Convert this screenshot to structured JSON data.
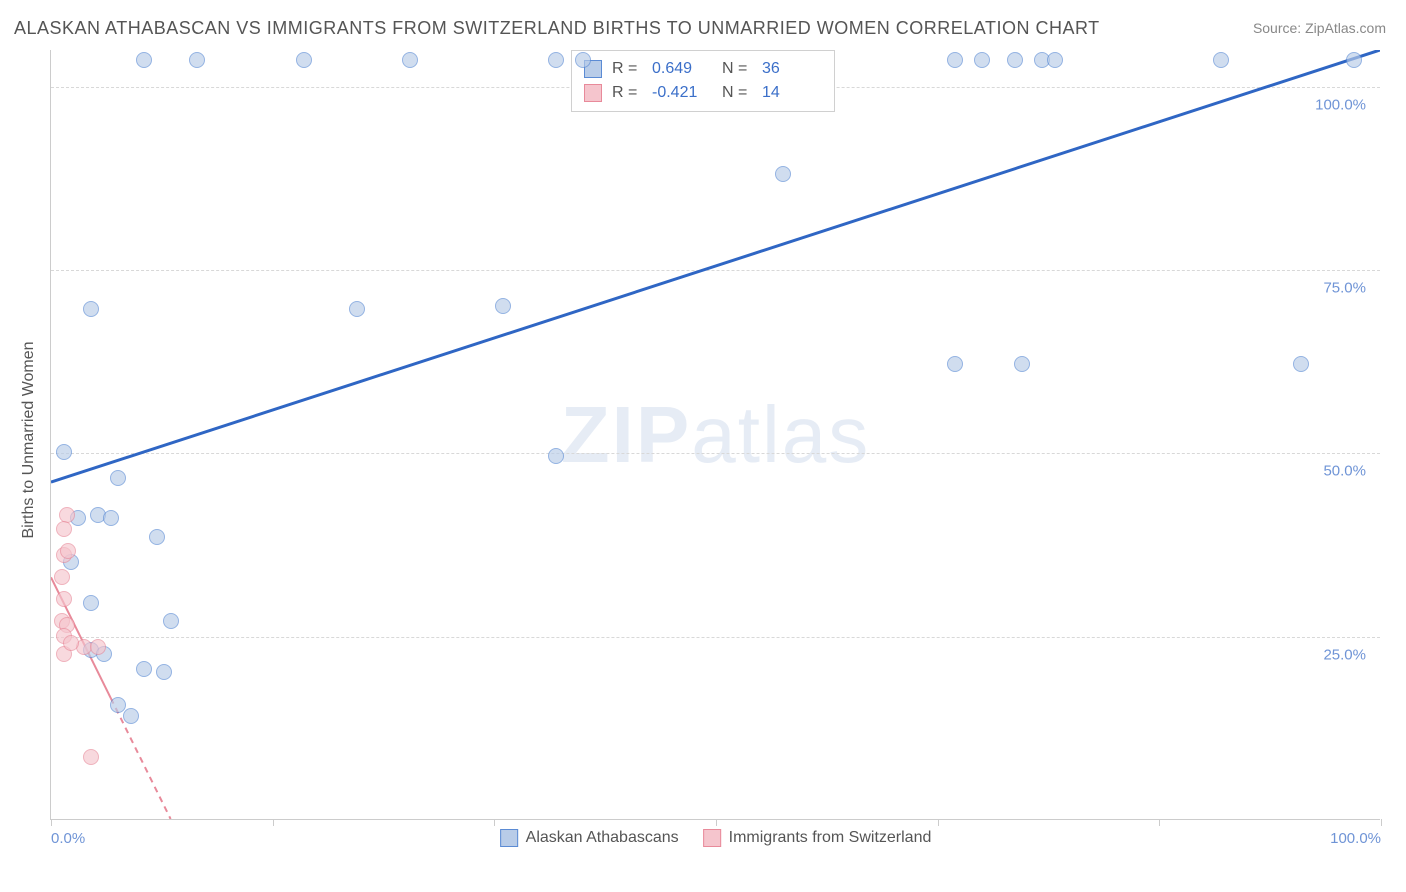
{
  "title": "ALASKAN ATHABASCAN VS IMMIGRANTS FROM SWITZERLAND BIRTHS TO UNMARRIED WOMEN CORRELATION CHART",
  "source": "Source: ZipAtlas.com",
  "ylabel": "Births to Unmarried Women",
  "watermark_bold": "ZIP",
  "watermark_rest": "atlas",
  "chart": {
    "type": "scatter",
    "background_color": "#ffffff",
    "grid_color": "#d8d8d8",
    "axis_color": "#cccccc",
    "tick_label_color": "#6f94d6",
    "text_color": "#555555",
    "xlim": [
      0,
      100
    ],
    "ylim": [
      0,
      105
    ],
    "ytick_values": [
      25,
      50,
      75,
      100
    ],
    "ytick_labels": [
      "25.0%",
      "50.0%",
      "75.0%",
      "100.0%"
    ],
    "xtick_values": [
      0,
      16.67,
      33.33,
      50,
      66.67,
      83.33,
      100
    ],
    "xtick_labels": {
      "0": "0.0%",
      "100": "100.0%"
    },
    "marker_radius": 8,
    "marker_border_width": 1,
    "series": [
      {
        "name": "Alaskan Athabascans",
        "fill_color": "#b8cce8",
        "border_color": "#5b8bd4",
        "fill_opacity": 0.65,
        "trend": {
          "x1": 0,
          "y1": 46,
          "x2": 100,
          "y2": 105,
          "color": "#2f66c4",
          "width": 3,
          "dash": "solid"
        },
        "r_label": "R =",
        "r_value": "0.649",
        "n_label": "N =",
        "n_value": "36",
        "points": [
          [
            7,
            103.5
          ],
          [
            11,
            103.5
          ],
          [
            19,
            103.5
          ],
          [
            27,
            103.5
          ],
          [
            38,
            103.5
          ],
          [
            40,
            103.5
          ],
          [
            68,
            103.5
          ],
          [
            70,
            103.5
          ],
          [
            72.5,
            103.5
          ],
          [
            74.5,
            103.5
          ],
          [
            75.5,
            103.5
          ],
          [
            88,
            103.5
          ],
          [
            98,
            103.5
          ],
          [
            55,
            88
          ],
          [
            3,
            69.5
          ],
          [
            23,
            69.5
          ],
          [
            34,
            70
          ],
          [
            68,
            62
          ],
          [
            73,
            62
          ],
          [
            94,
            62
          ],
          [
            1,
            50
          ],
          [
            38,
            49.5
          ],
          [
            5,
            46.5
          ],
          [
            2,
            41
          ],
          [
            3.5,
            41.5
          ],
          [
            4.5,
            41
          ],
          [
            8,
            38.5
          ],
          [
            1.5,
            35
          ],
          [
            3,
            29.5
          ],
          [
            9,
            27
          ],
          [
            3,
            23
          ],
          [
            4,
            22.5
          ],
          [
            7,
            20.5
          ],
          [
            8.5,
            20
          ],
          [
            5,
            15.5
          ],
          [
            6,
            14
          ]
        ]
      },
      {
        "name": "Immigrants from Switzerland",
        "fill_color": "#f5c5cd",
        "border_color": "#e88a9a",
        "fill_opacity": 0.65,
        "trend": {
          "x1": 0,
          "y1": 33,
          "x2": 9,
          "y2": 0,
          "color": "#e88a9a",
          "width": 2,
          "dash": "dashed"
        },
        "trend_solid_to_x": 4.5,
        "r_label": "R =",
        "r_value": "-0.421",
        "n_label": "N =",
        "n_value": "14",
        "points": [
          [
            1.2,
            41.5
          ],
          [
            1,
            39.5
          ],
          [
            1,
            36
          ],
          [
            1.3,
            36.5
          ],
          [
            0.8,
            33
          ],
          [
            1,
            30
          ],
          [
            0.8,
            27
          ],
          [
            1.2,
            26.5
          ],
          [
            1,
            25
          ],
          [
            2.5,
            23.5
          ],
          [
            3.5,
            23.5
          ],
          [
            1,
            22.5
          ],
          [
            3,
            8.5
          ],
          [
            1.5,
            24
          ]
        ]
      }
    ]
  }
}
